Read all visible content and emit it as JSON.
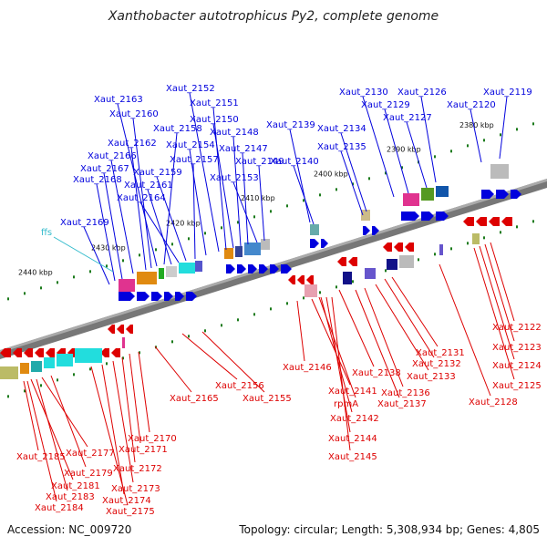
{
  "title": "Xanthobacter autotrophicus Py2, complete genome",
  "footer": {
    "accession": "Accession: NC_009720",
    "summary": "Topology: circular; Length: 5,308,934 bp; Genes: 4,805"
  },
  "scale_labels": [
    "2440 kbp",
    "2430 kbp",
    "2420 kbp",
    "2410 kbp",
    "2400 kbp",
    "2390 kbp",
    "2380 kbp"
  ],
  "colors": {
    "forward": "#0000dd",
    "reverse": "#dd0000",
    "ncrna": "#33bbcc",
    "backbone": "#777777",
    "tick": "#1a7a1a"
  },
  "forward_labels": [
    "Xaut_2169",
    "Xaut_2168",
    "Xaut_2167",
    "Xaut_2166",
    "Xaut_2162",
    "Xaut_2160",
    "Xaut_2163",
    "Xaut_2158",
    "Xaut_2161",
    "Xaut_2164",
    "Xaut_2159",
    "Xaut_2157",
    "Xaut_2154",
    "Xaut_2152",
    "Xaut_2151",
    "Xaut_2150",
    "Xaut_2148",
    "Xaut_2147",
    "Xaut_2153",
    "Xaut_2149",
    "Xaut_2140",
    "Xaut_2139",
    "Xaut_2135",
    "Xaut_2134",
    "Xaut_2130",
    "Xaut_2129",
    "Xaut_2127",
    "Xaut_2126",
    "Xaut_2120",
    "Xaut_2119"
  ],
  "ncrna_labels": [
    "ffs"
  ],
  "reverse_labels": [
    "Xaut_2185",
    "Xaut_2177",
    "Xaut_2181",
    "Xaut_2179",
    "Xaut_2183",
    "Xaut_2184",
    "Xaut_2175",
    "Xaut_2174",
    "Xaut_2173",
    "Xaut_2172",
    "Xaut_2171",
    "Xaut_2170",
    "Xaut_2165",
    "Xaut_2156",
    "Xaut_2155",
    "Xaut_2146",
    "Xaut_2141",
    "rpmA",
    "Xaut_2142",
    "Xaut_2144",
    "Xaut_2145",
    "Xaut_2138",
    "Xaut_2136",
    "Xaut_2137",
    "Xaut_2133",
    "Xaut_2132",
    "Xaut_2131",
    "Xaut_2128",
    "Xaut_2125",
    "Xaut_2124",
    "Xaut_2123",
    "Xaut_2122"
  ]
}
